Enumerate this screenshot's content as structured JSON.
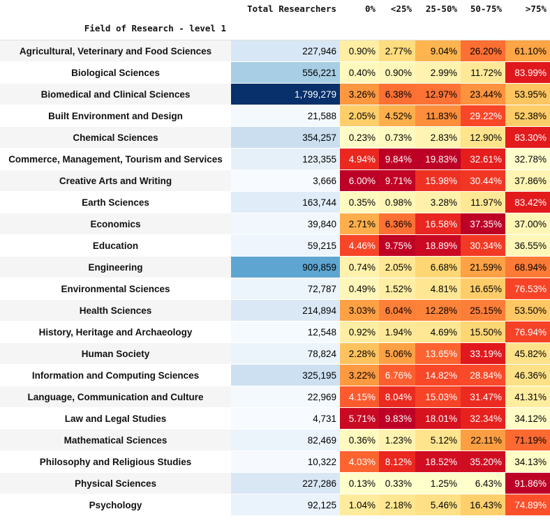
{
  "headers": {
    "index_name": "Field of Research - level 1",
    "columns": [
      "Total Researchers",
      "0%",
      "<25%",
      "25-50%",
      "50-75%",
      ">75%"
    ]
  },
  "rows": [
    {
      "field": "Agricultural, Veterinary and Food Sciences",
      "total": "227,946",
      "p0": "0.90%",
      "p1": "2.77%",
      "p2": "9.04%",
      "p3": "26.20%",
      "p4": "61.10%"
    },
    {
      "field": "Biological Sciences",
      "total": "556,221",
      "p0": "0.40%",
      "p1": "0.90%",
      "p2": "2.99%",
      "p3": "11.72%",
      "p4": "83.99%"
    },
    {
      "field": "Biomedical and Clinical Sciences",
      "total": "1,799,279",
      "p0": "3.26%",
      "p1": "6.38%",
      "p2": "12.97%",
      "p3": "23.44%",
      "p4": "53.95%"
    },
    {
      "field": "Built Environment and Design",
      "total": "21,588",
      "p0": "2.05%",
      "p1": "4.52%",
      "p2": "11.83%",
      "p3": "29.22%",
      "p4": "52.38%"
    },
    {
      "field": "Chemical Sciences",
      "total": "354,257",
      "p0": "0.23%",
      "p1": "0.73%",
      "p2": "2.83%",
      "p3": "12.90%",
      "p4": "83.30%"
    },
    {
      "field": "Commerce, Management, Tourism and Services",
      "total": "123,355",
      "p0": "4.94%",
      "p1": "9.84%",
      "p2": "19.83%",
      "p3": "32.61%",
      "p4": "32.78%"
    },
    {
      "field": "Creative Arts and Writing",
      "total": "3,666",
      "p0": "6.00%",
      "p1": "9.71%",
      "p2": "15.98%",
      "p3": "30.44%",
      "p4": "37.86%"
    },
    {
      "field": "Earth Sciences",
      "total": "163,744",
      "p0": "0.35%",
      "p1": "0.98%",
      "p2": "3.28%",
      "p3": "11.97%",
      "p4": "83.42%"
    },
    {
      "field": "Economics",
      "total": "39,840",
      "p0": "2.71%",
      "p1": "6.36%",
      "p2": "16.58%",
      "p3": "37.35%",
      "p4": "37.00%"
    },
    {
      "field": "Education",
      "total": "59,215",
      "p0": "4.46%",
      "p1": "9.75%",
      "p2": "18.89%",
      "p3": "30.34%",
      "p4": "36.55%"
    },
    {
      "field": "Engineering",
      "total": "909,859",
      "p0": "0.74%",
      "p1": "2.05%",
      "p2": "6.68%",
      "p3": "21.59%",
      "p4": "68.94%"
    },
    {
      "field": "Environmental Sciences",
      "total": "72,787",
      "p0": "0.49%",
      "p1": "1.52%",
      "p2": "4.81%",
      "p3": "16.65%",
      "p4": "76.53%"
    },
    {
      "field": "Health Sciences",
      "total": "214,894",
      "p0": "3.03%",
      "p1": "6.04%",
      "p2": "12.28%",
      "p3": "25.15%",
      "p4": "53.50%"
    },
    {
      "field": "History, Heritage and Archaeology",
      "total": "12,548",
      "p0": "0.92%",
      "p1": "1.94%",
      "p2": "4.69%",
      "p3": "15.50%",
      "p4": "76.94%"
    },
    {
      "field": "Human Society",
      "total": "78,824",
      "p0": "2.28%",
      "p1": "5.06%",
      "p2": "13.65%",
      "p3": "33.19%",
      "p4": "45.82%"
    },
    {
      "field": "Information and Computing Sciences",
      "total": "325,195",
      "p0": "3.22%",
      "p1": "6.76%",
      "p2": "14.82%",
      "p3": "28.84%",
      "p4": "46.36%"
    },
    {
      "field": "Language, Communication and Culture",
      "total": "22,969",
      "p0": "4.15%",
      "p1": "8.04%",
      "p2": "15.03%",
      "p3": "31.47%",
      "p4": "41.31%"
    },
    {
      "field": "Law and Legal Studies",
      "total": "4,731",
      "p0": "5.71%",
      "p1": "9.83%",
      "p2": "18.01%",
      "p3": "32.34%",
      "p4": "34.12%"
    },
    {
      "field": "Mathematical Sciences",
      "total": "82,469",
      "p0": "0.36%",
      "p1": "1.23%",
      "p2": "5.12%",
      "p3": "22.11%",
      "p4": "71.19%"
    },
    {
      "field": "Philosophy and Religious Studies",
      "total": "10,322",
      "p0": "4.03%",
      "p1": "8.12%",
      "p2": "18.52%",
      "p3": "35.20%",
      "p4": "34.13%"
    },
    {
      "field": "Physical Sciences",
      "total": "227,286",
      "p0": "0.13%",
      "p1": "0.33%",
      "p2": "1.25%",
      "p3": "6.43%",
      "p4": "91.86%"
    },
    {
      "field": "Psychology",
      "total": "92,125",
      "p0": "1.04%",
      "p1": "2.18%",
      "p2": "5.46%",
      "p3": "16.43%",
      "p4": "74.89%"
    }
  ],
  "colors": {
    "blues_scale": [
      "#f7fbff",
      "#deebf7",
      "#c6dbef",
      "#9ecae1",
      "#6baed6",
      "#4292c6",
      "#2171b5",
      "#08519c",
      "#08306b"
    ],
    "heat_scale": [
      "#ffffcc",
      "#ffeda0",
      "#fed976",
      "#feb24c",
      "#fd8d3c",
      "#fc4e2a",
      "#e31a1c",
      "#bd0026"
    ]
  }
}
